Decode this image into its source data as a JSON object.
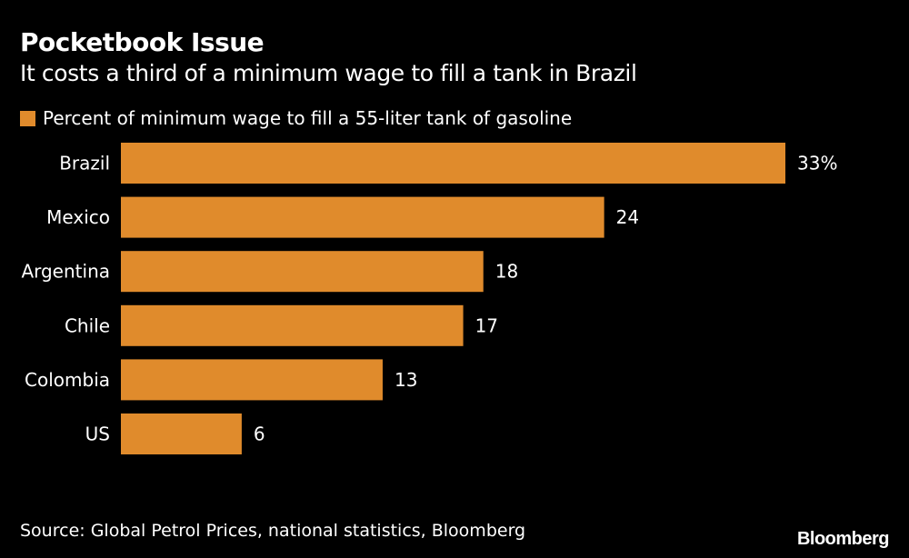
{
  "chart_data": {
    "type": "bar",
    "orientation": "horizontal",
    "title": "Pocketbook Issue",
    "subtitle": "It costs a third of a minimum wage to fill a tank in Brazil",
    "categories": [
      "Brazil",
      "Mexico",
      "Argentina",
      "Chile",
      "Colombia",
      "US"
    ],
    "series": [
      {
        "name": "Percent of minimum wage to fill a 55-liter tank of gasoline",
        "values": [
          33,
          24,
          18,
          17,
          13,
          6
        ],
        "labels": [
          "33%",
          "24",
          "18",
          "17",
          "13",
          "6"
        ],
        "color": "#e08b2c"
      }
    ],
    "xlim": [
      0,
      33
    ],
    "grid": false,
    "legend_position": "top-left",
    "source": "Source: Global Petrol Prices, national statistics, Bloomberg"
  },
  "branding": {
    "logo": "Bloomberg"
  },
  "colors": {
    "background": "#000000",
    "text": "#ffffff",
    "bar": "#e08b2c"
  }
}
